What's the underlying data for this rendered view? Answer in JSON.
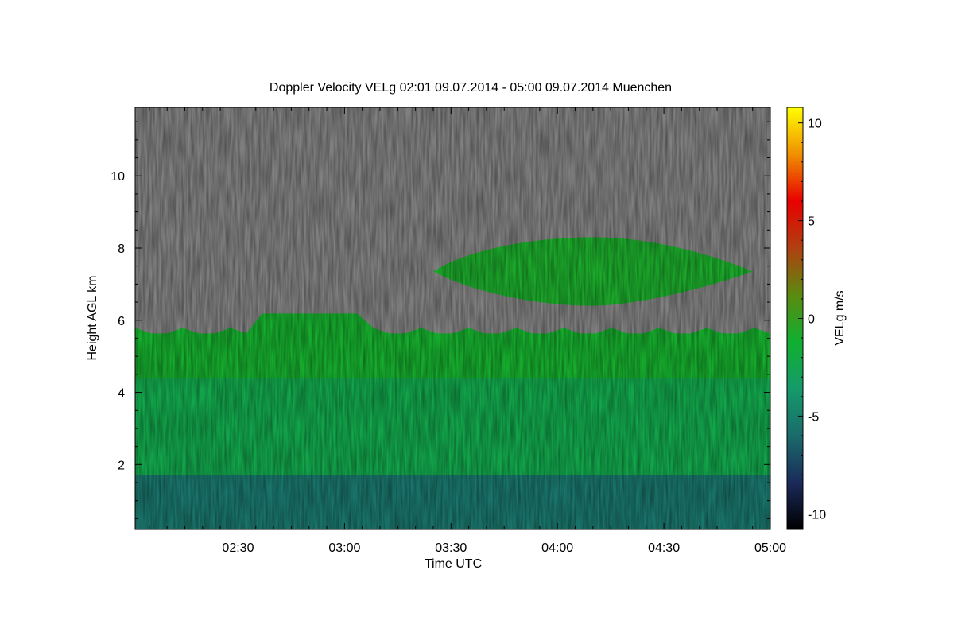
{
  "chart_data": {
    "type": "heatmap",
    "title": "Doppler Velocity VELg   02:01 09.07.2014 - 05:00 09.07.2014 Muenchen",
    "xlabel": "Time UTC",
    "ylabel": "Height AGL km",
    "x_range": [
      "02:01",
      "05:00"
    ],
    "x_ticks": [
      "02:30",
      "03:00",
      "03:30",
      "04:00",
      "04:30",
      "05:00"
    ],
    "ylim": [
      0.2,
      11.9
    ],
    "y_ticks": [
      2,
      4,
      6,
      8,
      10
    ],
    "colorbar": {
      "label": "VELg m/s",
      "range": [
        -10.8,
        10.8
      ],
      "ticks": [
        -10,
        -5,
        0,
        5,
        10
      ],
      "colors": [
        "#000000",
        "#1a2a5a",
        "#1a6b6b",
        "#159a6a",
        "#10b030",
        "#5a8a10",
        "#b04010",
        "#e80000",
        "#f09000",
        "#ffff00"
      ]
    },
    "no_data_color": "#808080",
    "layers": [
      {
        "name_hint": "near-surface layer",
        "height_range_km": [
          0.2,
          1.7
        ],
        "velocity_ms": -5.5
      },
      {
        "name_hint": "lower precipitation",
        "height_range_km": [
          1.7,
          4.4
        ],
        "velocity_ms": -2.3
      },
      {
        "name_hint": "upper precipitation",
        "height_range_km": [
          4.4,
          5.7
        ],
        "velocity_ms": -1.0
      },
      {
        "name_hint": "elevated cloud band",
        "time_range": [
          "03:25",
          "04:55"
        ],
        "height_range_km": [
          6.4,
          8.3
        ],
        "velocity_ms": -0.8
      }
    ]
  }
}
